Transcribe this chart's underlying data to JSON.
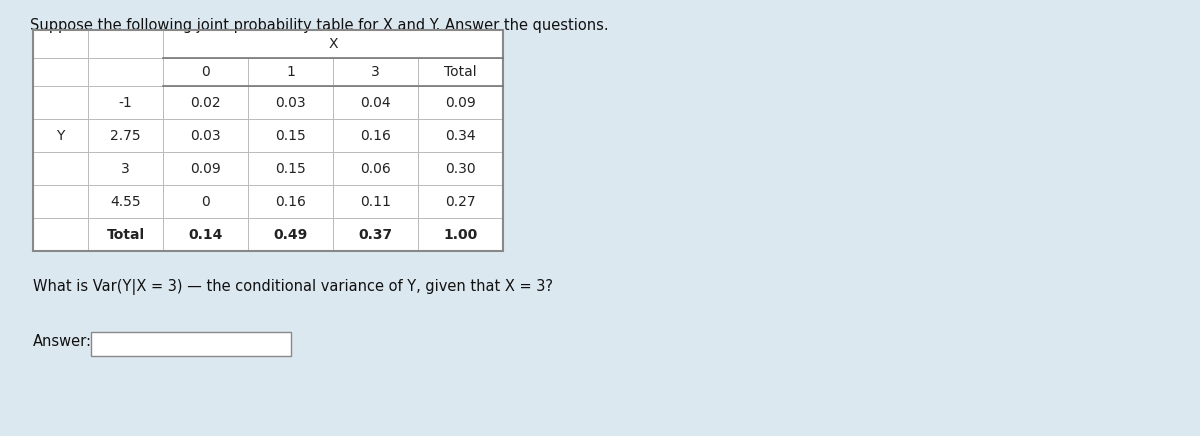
{
  "title": "Suppose the following joint probability table for X and Y. Answer the questions.",
  "question": "What is Var(Y|X = 3) — the conditional variance of Y, given that X = 3?",
  "answer_label": "Answer:",
  "bg_color": "#dce8f0",
  "table_bg": "#ffffff",
  "line_color": "#bbbbbb",
  "font_size": 10,
  "x_label": "X",
  "y_label": "Y",
  "col_headers": [
    "",
    "0",
    "1",
    "3",
    "Total"
  ],
  "row_headers": [
    "-1",
    "2.75",
    "3",
    "4.55",
    "Total"
  ],
  "data": [
    [
      "0.02",
      "0.03",
      "0.04",
      "0.09"
    ],
    [
      "0.03",
      "0.15",
      "0.16",
      "0.34"
    ],
    [
      "0.09",
      "0.15",
      "0.06",
      "0.30"
    ],
    [
      "0",
      "0.16",
      "0.11",
      "0.27"
    ],
    [
      "0.14",
      "0.49",
      "0.37",
      "1.00"
    ]
  ]
}
